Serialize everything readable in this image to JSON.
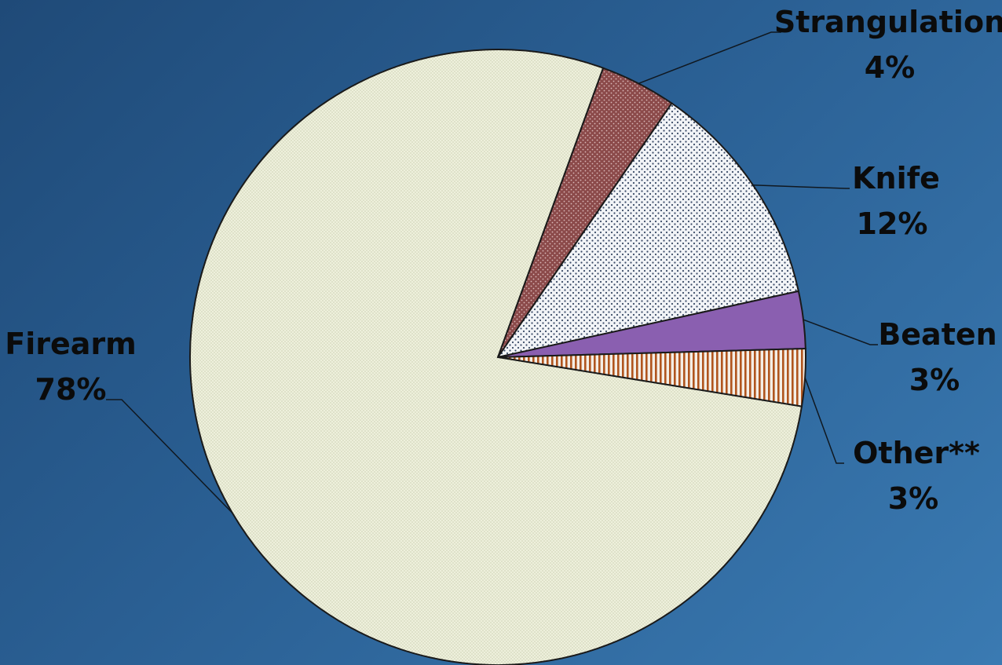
{
  "chart_data": {
    "type": "pie",
    "title": "",
    "slices": [
      {
        "name": "Strangulation",
        "value": 4,
        "label": "4%",
        "color": "#8b4a4a",
        "pattern": "dots-dense"
      },
      {
        "name": "Knife",
        "value": 12,
        "label": "12%",
        "color": "#f2f4f7",
        "pattern": "dots"
      },
      {
        "name": "Beaten",
        "value": 3,
        "label": "3%",
        "color": "#8a5fb0",
        "pattern": "none"
      },
      {
        "name": "Other**",
        "value": 3,
        "label": "3%",
        "color": "#f4eee6",
        "pattern": "vertical-stripes"
      },
      {
        "name": "Firearm",
        "value": 78,
        "label": "78%",
        "color": "#eef0dc",
        "pattern": "fine-dots"
      }
    ],
    "start_position": "12 o'clock",
    "direction": "clockwise",
    "legend": "none",
    "labels": "outside with leader lines"
  },
  "colors": {
    "background_dark": "#1f4a78",
    "background_light": "#3a7ab2",
    "outline": "#1a1a1a",
    "label_text": "#0b0b0b"
  }
}
